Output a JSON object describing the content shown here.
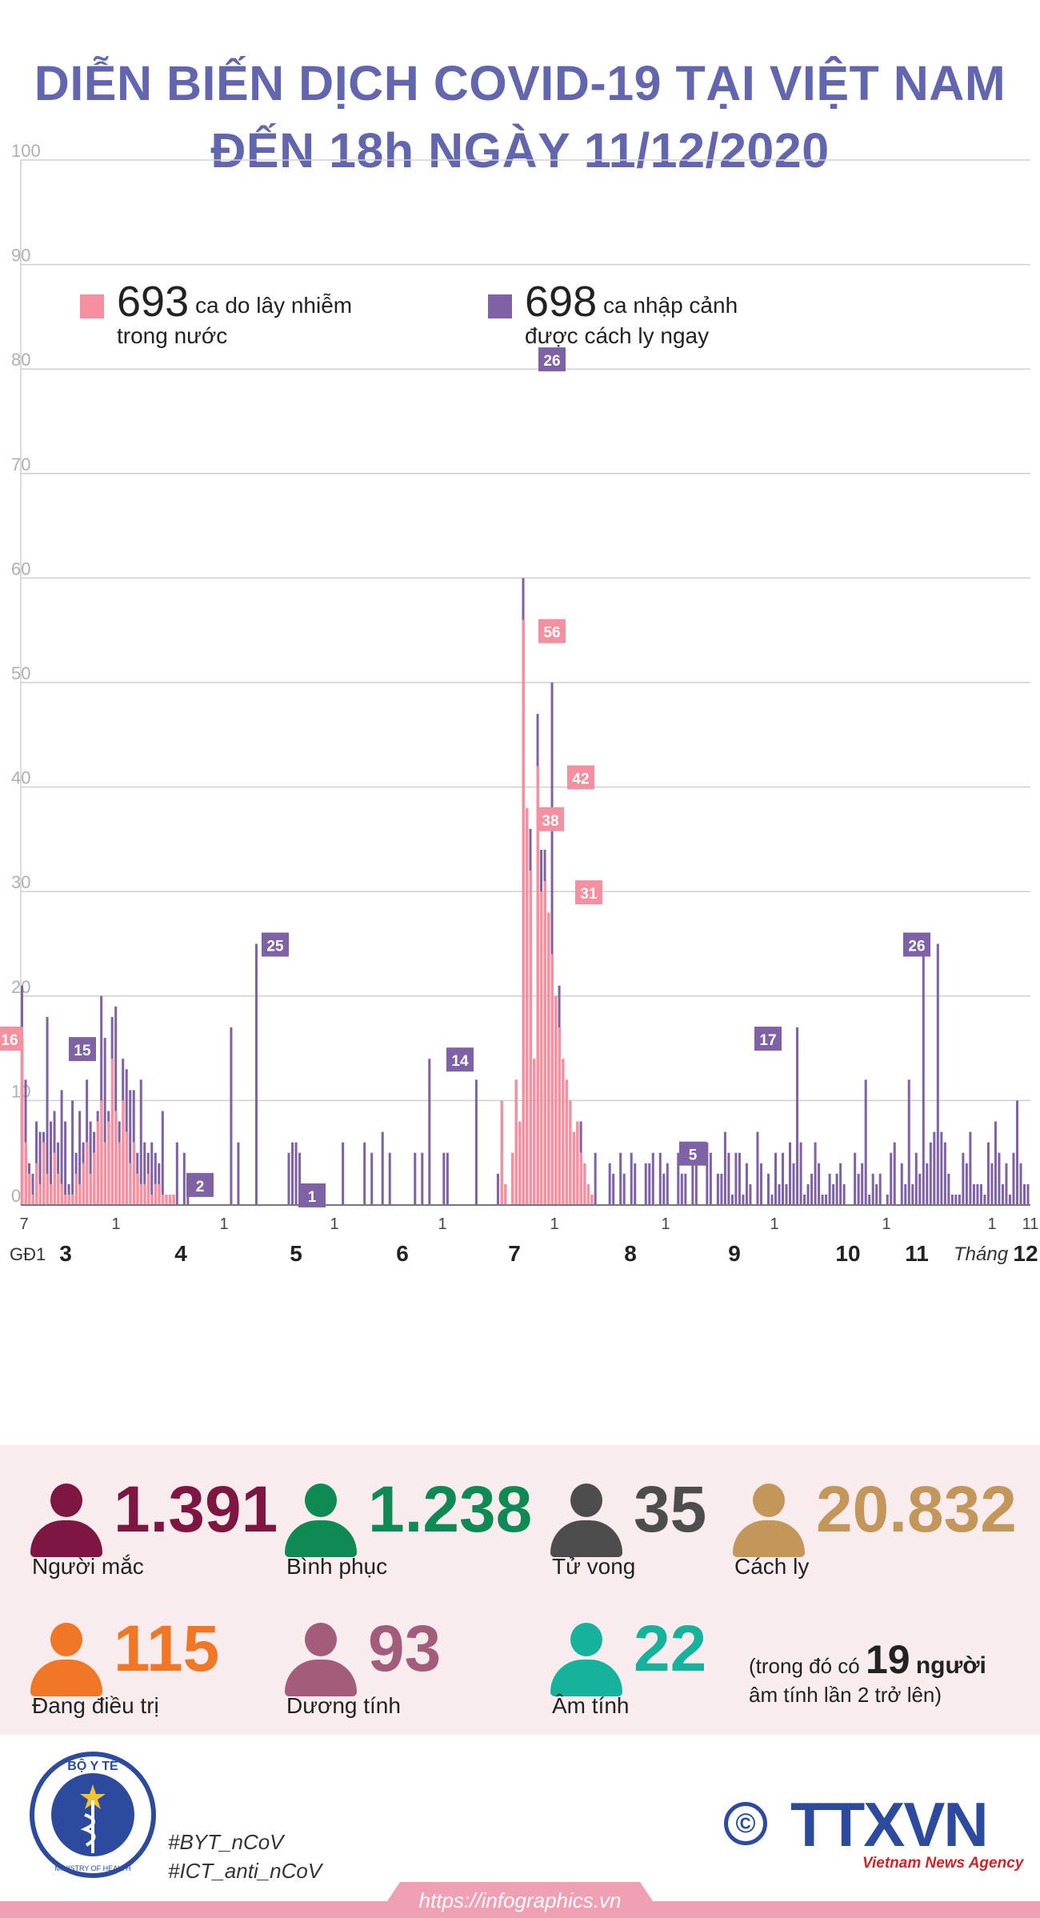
{
  "title_line1": "DIỄN BIẾN DỊCH COVID-19 TẠI VIỆT NAM",
  "title_line2": "ĐẾN 18h NGÀY 11/12/2020",
  "colors": {
    "title": "#6166ae",
    "domestic": "#f4909f",
    "imported": "#7f62a6",
    "grid": "#cfcfcf",
    "stats_background": "#f9ecef"
  },
  "legend": {
    "domestic": {
      "number": "693",
      "line1": "ca do lây nhiễm",
      "line2": "trong nước"
    },
    "imported": {
      "number": "698",
      "line1": "ca nhập cảnh",
      "line2": "được cách ly ngay"
    }
  },
  "chart_data": {
    "type": "bar",
    "stacked": true,
    "ylim": [
      0,
      100
    ],
    "yticks": [
      0,
      10,
      20,
      30,
      40,
      50,
      60,
      70,
      80,
      90,
      100
    ],
    "grid": true,
    "period_label": "GĐ1",
    "month_axis_label": "Tháng",
    "months": [
      "3",
      "4",
      "5",
      "6",
      "7",
      "8",
      "9",
      "10",
      "11",
      "12"
    ],
    "day_ticks": [
      "7",
      "1",
      "1",
      "1",
      "1",
      "1",
      "1",
      "1",
      "1",
      "1",
      "11"
    ],
    "series": [
      {
        "name": "ca do lây nhiễm trong nước",
        "color": "#f4909f",
        "total": 693
      },
      {
        "name": "ca nhập cảnh được cách ly ngay",
        "color": "#7f62a6",
        "total": 698
      }
    ],
    "domestic_by_day": [
      16,
      6,
      3,
      1,
      4,
      2,
      6,
      3,
      2,
      5,
      3,
      2,
      1,
      1,
      1,
      3,
      2,
      4,
      6,
      3,
      5,
      8,
      10,
      6,
      8,
      14,
      9,
      6,
      10,
      7,
      4,
      6,
      3,
      2,
      2,
      3,
      1,
      2,
      2,
      1,
      1,
      1,
      1,
      0,
      0,
      0,
      0,
      0,
      0,
      0,
      0,
      0,
      0,
      0,
      0,
      0,
      0,
      0,
      0,
      0,
      0,
      0,
      0,
      0,
      0,
      0,
      0,
      0,
      0,
      0,
      0,
      0,
      0,
      0,
      0,
      0,
      0,
      0,
      0,
      0,
      0,
      0,
      0,
      0,
      0,
      0,
      0,
      0,
      0,
      0,
      0,
      0,
      0,
      0,
      0,
      0,
      0,
      0,
      0,
      0,
      0,
      0,
      0,
      0,
      0,
      0,
      0,
      0,
      0,
      0,
      0,
      0,
      0,
      0,
      0,
      0,
      0,
      0,
      0,
      0,
      0,
      0,
      0,
      0,
      0,
      0,
      0,
      0,
      0,
      0,
      0,
      0,
      0,
      0,
      0,
      0,
      0,
      0,
      0,
      0,
      0,
      0,
      0,
      0,
      0,
      0,
      0,
      0,
      0,
      0,
      0,
      0,
      0,
      0,
      0,
      0,
      0,
      0,
      0,
      0,
      0,
      0,
      0,
      0,
      0,
      0,
      0,
      0,
      0,
      0,
      0,
      0,
      0,
      0,
      0,
      0,
      0,
      0,
      0,
      0,
      0,
      0,
      0,
      0,
      0,
      0,
      0,
      0,
      0,
      0,
      0,
      0,
      0,
      0,
      0,
      0,
      0,
      0,
      0,
      0,
      0,
      0,
      0,
      0,
      0,
      0,
      0,
      0,
      0,
      0,
      0,
      0,
      0,
      0,
      0,
      0,
      0,
      0,
      0,
      0,
      0,
      0,
      0,
      0,
      0,
      0,
      0,
      0,
      0,
      0,
      0,
      0,
      0,
      0,
      0,
      0,
      0,
      0,
      0,
      0,
      0,
      0,
      0,
      0,
      0,
      0,
      0,
      0,
      0,
      0,
      0,
      0,
      0,
      0,
      0,
      0,
      0,
      0,
      0,
      0,
      0,
      0,
      0,
      0,
      0,
      0,
      0,
      0,
      0,
      0,
      0,
      0,
      0,
      0,
      0,
      0,
      0,
      0,
      0,
      0,
      0,
      0,
      0,
      0,
      0,
      0,
      0,
      0,
      0,
      0,
      0,
      0,
      0,
      0,
      0,
      0,
      0,
      0,
      0,
      0,
      0,
      0,
      0,
      0,
      0,
      0,
      0,
      0,
      0,
      0,
      0,
      0,
      0,
      0,
      0,
      0,
      0,
      0,
      0,
      0,
      0,
      0,
      0,
      0,
      0,
      0,
      0,
      0,
      0,
      0,
      0,
      0,
      0,
      0,
      0,
      0,
      0,
      0,
      0,
      0,
      0,
      0,
      0,
      0,
      0,
      0,
      0,
      0,
      0,
      0,
      0,
      0,
      0,
      0,
      0,
      0,
      0,
      0,
      0,
      0,
      0,
      0,
      0,
      0,
      0,
      0,
      0,
      0,
      0,
      0,
      0,
      0,
      0,
      0,
      0,
      0,
      0,
      0,
      0,
      0,
      0,
      0,
      0,
      0,
      0,
      0,
      0,
      0,
      0,
      0,
      0,
      0,
      0,
      0
    ],
    "domestic_summer": [
      10,
      2,
      0,
      5,
      12,
      8,
      56,
      38,
      32,
      14,
      42,
      30,
      31,
      28,
      24,
      20,
      17,
      14,
      12,
      10,
      7,
      8,
      5,
      4,
      2,
      1
    ],
    "imported_by_day_notes": "values estimated from bars",
    "labels": [
      {
        "text": "16",
        "series": "domestic"
      },
      {
        "text": "15",
        "series": "imported"
      },
      {
        "text": "2",
        "series": "imported"
      },
      {
        "text": "25",
        "series": "imported"
      },
      {
        "text": "1",
        "series": "imported"
      },
      {
        "text": "14",
        "series": "imported"
      },
      {
        "text": "26",
        "series": "imported"
      },
      {
        "text": "56",
        "series": "domestic"
      },
      {
        "text": "38",
        "series": "domestic"
      },
      {
        "text": "42",
        "series": "domestic"
      },
      {
        "text": "31",
        "series": "domestic"
      },
      {
        "text": "5",
        "series": "imported"
      },
      {
        "text": "17",
        "series": "imported"
      },
      {
        "text": "26",
        "series": "imported"
      }
    ]
  },
  "stats": {
    "mac": {
      "value": "1.391",
      "label": "Người mắc",
      "color": "#7d1741"
    },
    "binh_phuc": {
      "value": "1.238",
      "label": "Bình phục",
      "color": "#108a55"
    },
    "tu_vong": {
      "value": "35",
      "label": "Tử vong",
      "color": "#4d4d4d"
    },
    "cach_ly": {
      "value": "20.832",
      "label": "Cách ly",
      "color": "#c3965a"
    },
    "dieu_tri": {
      "value": "115",
      "label": "Đang điều trị",
      "color": "#f07725"
    },
    "duong_tinh": {
      "value": "93",
      "label": "Dương tính",
      "color": "#a35d7a"
    },
    "am_tinh": {
      "value": "22",
      "label": "Âm tính",
      "color": "#16b39c"
    }
  },
  "note": {
    "prefix": "(trong đó có",
    "number": "19",
    "unit": "người",
    "line2": "âm tính lần 2 trở lên)"
  },
  "footer": {
    "moh_top": "BỘ Y TẾ",
    "moh_bottom": "MINISTRY OF HEALTH",
    "hashtag1": "#BYT_nCoV",
    "hashtag2": "#ICT_anti_nCoV",
    "copyright": "©",
    "agency": "TTXVN",
    "agency_sub": "Vietnam News Agency",
    "url": "https://infographics.vn"
  }
}
